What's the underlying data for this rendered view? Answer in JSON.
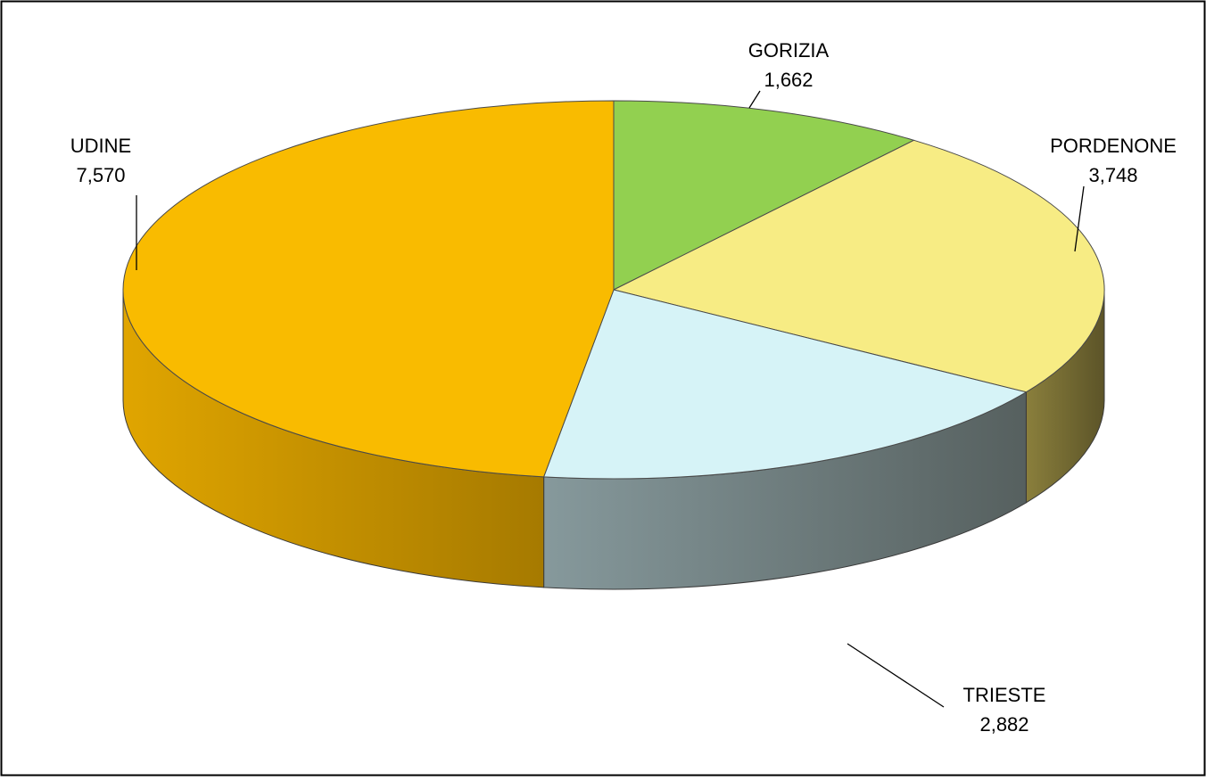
{
  "chart_data": {
    "type": "pie",
    "style": "3d",
    "categories": [
      "GORIZIA",
      "PORDENONE",
      "TRIESTE",
      "UDINE"
    ],
    "values": [
      1662,
      3748,
      2882,
      7570
    ],
    "value_labels": [
      "1,662",
      "3,748",
      "2,882",
      "7,570"
    ],
    "colors": [
      "#92d050",
      "#f7ec84",
      "#d6f3f7",
      "#f9bb00"
    ],
    "side_colors": [
      [
        "#6f9e3c",
        "#4e7029"
      ],
      [
        "#8a7f3c",
        "#5c5428"
      ],
      [
        "#86999c",
        "#56605f"
      ],
      [
        "#e0a500",
        "#a67a00"
      ]
    ],
    "title": "",
    "legend": "none",
    "data_labels": "category-and-value"
  }
}
